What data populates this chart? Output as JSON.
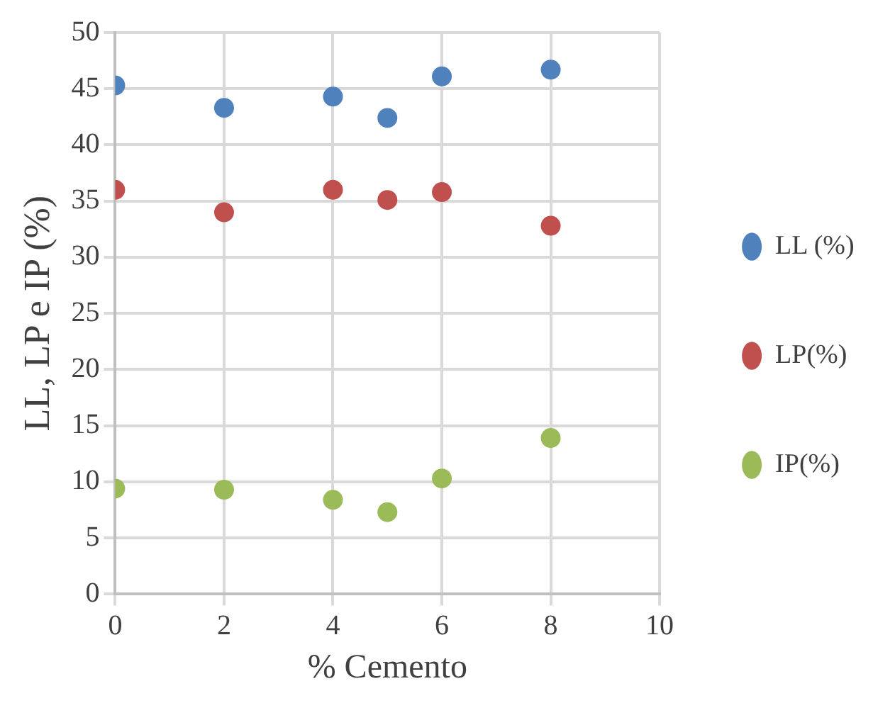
{
  "chart_data": {
    "type": "scatter",
    "xlabel": "% Cemento",
    "ylabel": "LL, LP e IP (%)",
    "x": [
      0,
      2,
      4,
      5,
      6,
      8
    ],
    "series": [
      {
        "name": "LL (%)",
        "color": "#4f81bd",
        "values": [
          45.3,
          43.3,
          44.3,
          42.4,
          46.1,
          46.7
        ]
      },
      {
        "name": "LP(%)",
        "color": "#c0504d",
        "values": [
          36.0,
          34.0,
          36.0,
          35.1,
          35.8,
          32.8
        ]
      },
      {
        "name": "IP(%)",
        "color": "#9bbb59",
        "values": [
          9.4,
          9.3,
          8.4,
          7.3,
          10.3,
          13.9
        ]
      }
    ],
    "xlim": [
      0,
      10
    ],
    "xticks": [
      0,
      2,
      4,
      6,
      8,
      10
    ],
    "ylim": [
      0,
      50
    ],
    "yticks": [
      0,
      5,
      10,
      15,
      20,
      25,
      30,
      35,
      40,
      45,
      50
    ],
    "grid": true,
    "legend": "right",
    "marker": "circle"
  }
}
